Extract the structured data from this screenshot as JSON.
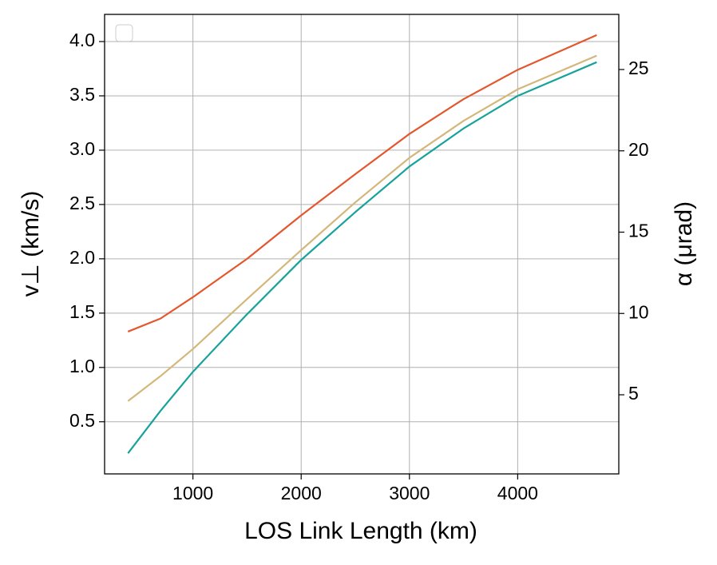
{
  "chart_data": {
    "type": "line",
    "xlabel": "LOS Link Length (km)",
    "ylabel": "v⊥ (km/s)",
    "y2label": "α (μrad)",
    "x": [
      400,
      700,
      1000,
      1500,
      2000,
      2500,
      3000,
      3500,
      4000,
      4730
    ],
    "series": [
      {
        "color": "#e4572e",
        "values": [
          1.33,
          1.45,
          1.647,
          2.0,
          2.4,
          2.78,
          3.15,
          3.47,
          3.74,
          4.06
        ]
      },
      {
        "color": "#d4b77a",
        "values": [
          0.69,
          0.92,
          1.17,
          1.63,
          2.08,
          2.52,
          2.93,
          3.27,
          3.56,
          3.87
        ]
      },
      {
        "color": "#17a39b",
        "values": [
          0.21,
          0.6,
          0.96,
          1.49,
          1.99,
          2.43,
          2.85,
          3.2,
          3.5,
          3.81
        ]
      }
    ],
    "xlim": [
      184,
      4934
    ],
    "xticks": [
      1000,
      2000,
      3000,
      4000
    ],
    "ylim": [
      0.02,
      4.25
    ],
    "yticks": [
      0.5,
      1.0,
      1.5,
      2.0,
      2.5,
      3.0,
      3.5,
      4.0
    ],
    "y2lim": [
      0.135,
      28.39
    ],
    "y2ticks": [
      5,
      10,
      15,
      20,
      25
    ],
    "grid": true
  }
}
